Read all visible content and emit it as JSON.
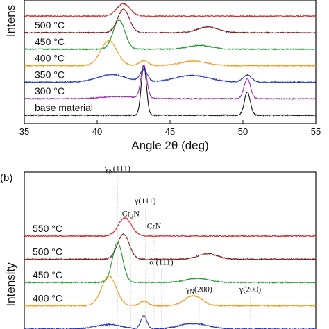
{
  "chart_data": [
    {
      "type": "line",
      "panel_label": "",
      "xlabel": "Angle 2θ (deg)",
      "ylabel": "Intens",
      "xlim": [
        35,
        55
      ],
      "x_ticks": [
        35,
        40,
        45,
        50,
        55
      ],
      "grid": false,
      "series": [
        {
          "name": "base material",
          "color": "#111111",
          "offset": 0,
          "peaks": [
            {
              "x": 43.2,
              "h": 6.0,
              "w": 0.18
            },
            {
              "x": 50.3,
              "h": 2.8,
              "w": 0.2
            }
          ]
        },
        {
          "name": "300 °C",
          "color": "#9b2fae",
          "offset": 1,
          "peaks": [
            {
              "x": 43.2,
              "h": 4.0,
              "w": 0.2
            },
            {
              "x": 50.3,
              "h": 2.4,
              "w": 0.22
            },
            {
              "x": 41.5,
              "h": 0.25,
              "w": 1.2
            }
          ]
        },
        {
          "name": "350 °C",
          "color": "#2233bb",
          "offset": 2,
          "peaks": [
            {
              "x": 41.0,
              "h": 0.9,
              "w": 1.0
            },
            {
              "x": 43.2,
              "h": 1.4,
              "w": 0.25
            },
            {
              "x": 46.5,
              "h": 0.8,
              "w": 1.2
            },
            {
              "x": 50.3,
              "h": 0.85,
              "w": 0.3
            }
          ]
        },
        {
          "name": "400 °C",
          "color": "#f09a1c",
          "offset": 3,
          "peaks": [
            {
              "x": 40.8,
              "h": 3.0,
              "w": 0.55
            },
            {
              "x": 43.2,
              "h": 0.6,
              "w": 0.3
            },
            {
              "x": 46.6,
              "h": 0.55,
              "w": 0.9
            }
          ]
        },
        {
          "name": "450 °C",
          "color": "#1e9a2e",
          "offset": 4,
          "peaks": [
            {
              "x": 41.5,
              "h": 3.5,
              "w": 0.4
            },
            {
              "x": 47.0,
              "h": 0.45,
              "w": 0.8
            }
          ]
        },
        {
          "name": "500 °C",
          "color": "#7a1a1a",
          "offset": 5,
          "peaks": [
            {
              "x": 41.8,
              "h": 2.8,
              "w": 0.4
            },
            {
              "x": 47.6,
              "h": 0.7,
              "w": 0.7
            }
          ]
        },
        {
          "name": "",
          "color": "#d62728",
          "offset": 6,
          "peaks": [
            {
              "x": 41.8,
              "h": 1.5,
              "w": 0.45
            }
          ]
        }
      ]
    },
    {
      "type": "line",
      "panel_label": "(b)",
      "xlabel": "",
      "ylabel": "Intensity",
      "xlim": [
        35,
        55
      ],
      "grid": false,
      "peak_labels": [
        {
          "text": "γN(111)",
          "main": "γ",
          "sub": "N",
          "tail": "(111)",
          "x": 41.4,
          "lift": 1.8
        },
        {
          "text": "γ(111)",
          "main": "γ(111)",
          "sub": "",
          "tail": "",
          "x": 43.3,
          "lift": 0.9
        },
        {
          "text": "Cr2N",
          "main": "Cr",
          "sub": "2",
          "tail": "N",
          "x": 42.3,
          "lift": 0.55
        },
        {
          "text": "CrN",
          "main": "CrN",
          "sub": "",
          "tail": "",
          "x": 43.9,
          "lift": 0.2
        },
        {
          "text": "α (111)",
          "main": "α (111)",
          "sub": "",
          "tail": "",
          "x": 44.4,
          "lift": -0.8
        },
        {
          "text": "γN(200)",
          "main": "γ",
          "sub": "N",
          "tail": "(200)",
          "x": 47.0,
          "lift": -1.55
        },
        {
          "text": "γ(200)",
          "main": "γ(200)",
          "sub": "",
          "tail": "",
          "x": 50.5,
          "lift": -1.55
        }
      ],
      "series": [
        {
          "name": "550 °C",
          "color": "#d62728",
          "offset": 4,
          "peaks": [
            {
              "x": 41.9,
              "h": 2.0,
              "w": 0.45
            }
          ]
        },
        {
          "name": "500 °C",
          "color": "#7a1a1a",
          "offset": 3,
          "peaks": [
            {
              "x": 41.8,
              "h": 2.8,
              "w": 0.4
            },
            {
              "x": 47.6,
              "h": 0.6,
              "w": 0.7
            }
          ]
        },
        {
          "name": "450 °C",
          "color": "#1e9a2e",
          "offset": 2,
          "peaks": [
            {
              "x": 41.4,
              "h": 4.4,
              "w": 0.35
            },
            {
              "x": 46.9,
              "h": 0.45,
              "w": 0.8
            }
          ]
        },
        {
          "name": "400 °C",
          "color": "#f09a1c",
          "offset": 1,
          "peaks": [
            {
              "x": 40.8,
              "h": 3.3,
              "w": 0.5
            },
            {
              "x": 43.2,
              "h": 0.5,
              "w": 0.3
            },
            {
              "x": 46.6,
              "h": 1.1,
              "w": 0.6
            }
          ]
        },
        {
          "name": "",
          "color": "#2233bb",
          "offset": 0,
          "peaks": [
            {
              "x": 40.8,
              "h": 0.5,
              "w": 0.9
            },
            {
              "x": 43.2,
              "h": 1.5,
              "w": 0.2
            },
            {
              "x": 46.6,
              "h": 0.6,
              "w": 1.0
            }
          ]
        }
      ]
    }
  ]
}
